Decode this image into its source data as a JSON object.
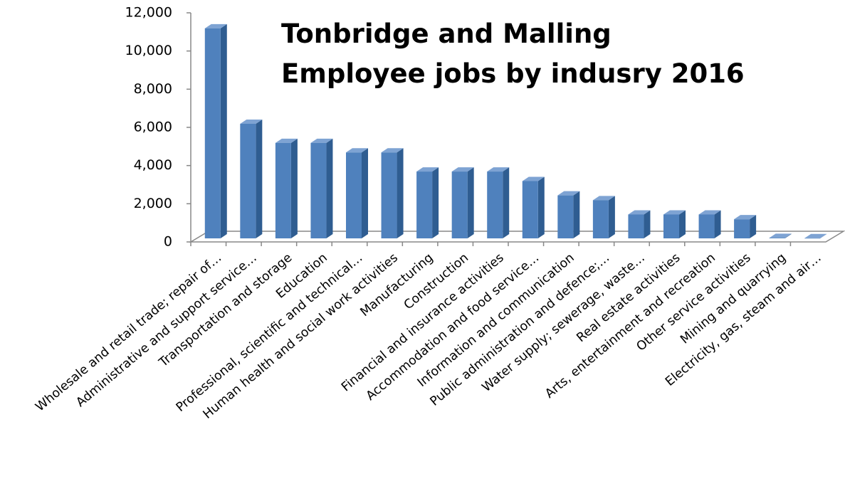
{
  "chart_data": {
    "type": "bar3d",
    "title": [
      "Tonbridge and Malling",
      "Employee jobs by indusry 2016"
    ],
    "categories": [
      "Wholesale and retail trade; repair of…",
      "Administrative and support service…",
      "Transportation and storage",
      "Education",
      "Professional, scientific and technical…",
      "Human health and social work activities",
      "Manufacturing",
      "Construction",
      "Financial and insurance activities",
      "Accommodation and food service…",
      "Information and communication",
      "Public administration and defence;…",
      "Water supply; sewerage, waste…",
      "Real estate activities",
      "Arts, entertainment and recreation",
      "Other service activities",
      "Mining and quarrying",
      "Electricity, gas, steam and air…"
    ],
    "values": [
      11000,
      6000,
      5000,
      5000,
      4500,
      4500,
      3500,
      3500,
      3500,
      3000,
      2250,
      2000,
      1250,
      1250,
      1250,
      1000,
      25,
      10
    ],
    "color": "#4f81bd",
    "ylim": [
      0,
      12000
    ],
    "yticks": [
      0,
      {
        "value": 2000,
        "label": "2,000"
      },
      {
        "value": 4000,
        "label": "4,000"
      },
      {
        "value": 6000,
        "label": "6,000"
      },
      {
        "value": 8000,
        "label": "8,000"
      },
      {
        "value": 10000,
        "label": "10,000"
      },
      {
        "value": 12000,
        "label": "12,000"
      }
    ]
  }
}
